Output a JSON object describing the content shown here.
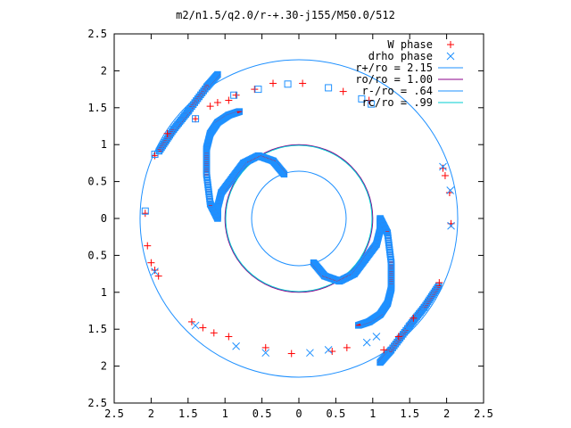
{
  "chart_data": {
    "type": "scatter",
    "title": "m2/n1.5/q2.0/r-+.30-j155/M50.0/512",
    "xlim": [
      -2.5,
      2.5
    ],
    "ylim": [
      -2.5,
      2.5
    ],
    "x_tick_values": [
      -2.5,
      -2,
      -1.5,
      -1,
      -0.5,
      0,
      0.5,
      1,
      1.5,
      2,
      2.5
    ],
    "x_tick_labels": [
      "2.5",
      "2",
      "1.5",
      "1",
      "0.5",
      "0",
      "0.5",
      "1",
      "1.5",
      "2",
      "2.5"
    ],
    "y_tick_values": [
      2.5,
      2,
      1.5,
      1,
      0.5,
      0,
      -0.5,
      -1,
      -1.5,
      -2,
      -2.5
    ],
    "y_tick_labels": [
      "2.5",
      "2",
      "1.5",
      "1",
      "0.5",
      "0",
      "0.5",
      "1",
      "1.5",
      "2",
      "2.5"
    ],
    "grid": false,
    "legend_position": "top-right",
    "series": [
      {
        "name": "W phase",
        "marker": "plus",
        "color": "#ff0000",
        "points": [
          [
            0.05,
            1.83
          ],
          [
            -0.35,
            1.83
          ],
          [
            0.6,
            1.72
          ],
          [
            0.95,
            1.6
          ],
          [
            -0.6,
            1.75
          ],
          [
            -0.85,
            1.67
          ],
          [
            -0.95,
            1.6
          ],
          [
            -1.1,
            1.57
          ],
          [
            -1.2,
            1.52
          ],
          [
            -1.4,
            1.35
          ],
          [
            -1.78,
            1.15
          ],
          [
            -1.95,
            0.85
          ],
          [
            -2.08,
            0.07
          ],
          [
            -2.05,
            -0.37
          ],
          [
            -2.0,
            -0.6
          ],
          [
            -1.95,
            -0.7
          ],
          [
            -1.9,
            -0.78
          ],
          [
            2.06,
            -0.07
          ],
          [
            2.04,
            0.35
          ],
          [
            1.98,
            0.58
          ],
          [
            1.95,
            0.68
          ],
          [
            1.9,
            -0.87
          ],
          [
            1.55,
            -1.35
          ],
          [
            1.35,
            -1.6
          ],
          [
            1.15,
            -1.78
          ],
          [
            0.65,
            -1.75
          ],
          [
            0.45,
            -1.8
          ],
          [
            -0.1,
            -1.83
          ],
          [
            -0.45,
            -1.75
          ],
          [
            -0.95,
            -1.6
          ],
          [
            -1.15,
            -1.55
          ],
          [
            -1.3,
            -1.48
          ],
          [
            -1.45,
            -1.4
          ]
        ]
      },
      {
        "name": "drho phase",
        "marker": "cross",
        "color": "#1e90ff",
        "points": [
          [
            0.4,
            -1.78
          ],
          [
            0.15,
            -1.82
          ],
          [
            -0.45,
            -1.82
          ],
          [
            -0.85,
            -1.73
          ],
          [
            -1.4,
            -1.45
          ],
          [
            -1.95,
            -0.72
          ],
          [
            1.95,
            0.7
          ],
          [
            2.05,
            0.38
          ],
          [
            2.06,
            -0.1
          ],
          [
            0.92,
            -1.68
          ],
          [
            1.05,
            -1.6
          ]
        ]
      },
      {
        "name": "drho phase",
        "marker": "square",
        "color": "#1e90ff",
        "points": [
          [
            -0.15,
            1.82
          ],
          [
            -0.55,
            1.75
          ],
          [
            -0.88,
            1.67
          ],
          [
            0.4,
            1.77
          ],
          [
            0.85,
            1.62
          ],
          [
            0.98,
            1.55
          ],
          [
            -1.95,
            0.87
          ],
          [
            -2.08,
            0.1
          ],
          [
            -1.4,
            1.35
          ]
        ]
      }
    ],
    "spiral_arms": [
      {
        "name": "arm-left",
        "color": "#1e90ff",
        "marker_color": "#ff0000"
      },
      {
        "name": "arm-right",
        "color": "#1e90ff",
        "marker_color": "#ff0000"
      }
    ],
    "circles": [
      {
        "label": "r+/ro = 2.15",
        "radius": 2.15,
        "color": "#1e90ff"
      },
      {
        "label": "ro/ro = 1.00",
        "radius": 1.0,
        "color": "#8b008b"
      },
      {
        "label": "r-/ro = .64",
        "radius": 0.64,
        "color": "#1e90ff"
      },
      {
        "label": "rc/ro = .99",
        "radius": 0.99,
        "color": "#00ced1"
      }
    ],
    "legend": [
      {
        "label": "W phase",
        "symbol": "plus",
        "color": "#ff0000"
      },
      {
        "label": "drho phase",
        "symbol": "cross",
        "color": "#1e90ff"
      },
      {
        "label": "r+/ro = 2.15",
        "symbol": "line",
        "color": "#1e90ff"
      },
      {
        "label": "ro/ro = 1.00",
        "symbol": "line",
        "color": "#8b008b"
      },
      {
        "label": "r-/ro = .64",
        "symbol": "line",
        "color": "#1e90ff"
      },
      {
        "label": "rc/ro = .99",
        "symbol": "line",
        "color": "#00ced1"
      }
    ]
  }
}
